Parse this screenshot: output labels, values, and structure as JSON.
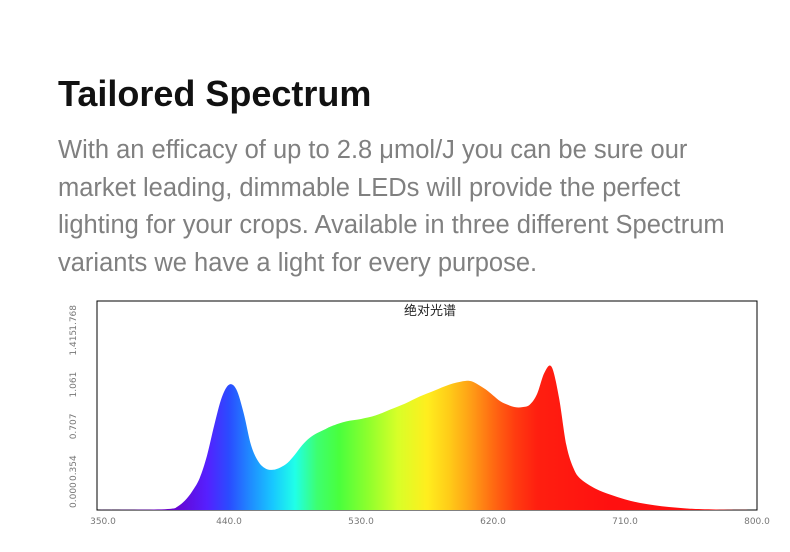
{
  "heading": {
    "title": "Tailored Spectrum",
    "description": "With an efficacy of up to 2.8 μmol/J you can be sure our market leading, dimmable LEDs will provide the perfect lighting for your crops.  Available in three different Spectrum variants we have a light for every purpose."
  },
  "chart_data": {
    "type": "area",
    "title": "绝对光谱",
    "xlabel": "",
    "ylabel": "",
    "xlim": [
      350,
      800
    ],
    "ylim": [
      0,
      1.768
    ],
    "x_ticks": [
      "350.0",
      "440.0",
      "530.0",
      "620.0",
      "710.0",
      "800.0"
    ],
    "y_ticks": [
      "0.000",
      "0.354",
      "0.707",
      "1.061",
      "1.415",
      "1.768"
    ],
    "grid": false,
    "legend": "none",
    "fill": "wavelength-rainbow",
    "series": [
      {
        "x": [
          350,
          380,
          400,
          405,
          410,
          415,
          420,
          425,
          430,
          435,
          440,
          445,
          450,
          455,
          460,
          465,
          470,
          475,
          480,
          485,
          490,
          495,
          500,
          505,
          510,
          520,
          530,
          540,
          550,
          560,
          570,
          580,
          590,
          600,
          605,
          610,
          615,
          620,
          625,
          630,
          635,
          640,
          645,
          650,
          655,
          660,
          665,
          670,
          675,
          680,
          690,
          700,
          710,
          720,
          730,
          740,
          750,
          760,
          780,
          800
        ],
        "values": [
          0.0,
          0.003,
          0.01,
          0.03,
          0.08,
          0.16,
          0.27,
          0.46,
          0.72,
          0.95,
          1.06,
          1.02,
          0.82,
          0.55,
          0.41,
          0.35,
          0.34,
          0.36,
          0.4,
          0.47,
          0.55,
          0.61,
          0.65,
          0.68,
          0.71,
          0.75,
          0.77,
          0.8,
          0.85,
          0.9,
          0.96,
          1.01,
          1.06,
          1.09,
          1.09,
          1.06,
          1.02,
          0.97,
          0.92,
          0.89,
          0.87,
          0.87,
          0.89,
          0.98,
          1.16,
          1.21,
          0.95,
          0.55,
          0.35,
          0.26,
          0.18,
          0.13,
          0.09,
          0.06,
          0.04,
          0.025,
          0.015,
          0.008,
          0.002,
          0.0
        ]
      }
    ]
  }
}
